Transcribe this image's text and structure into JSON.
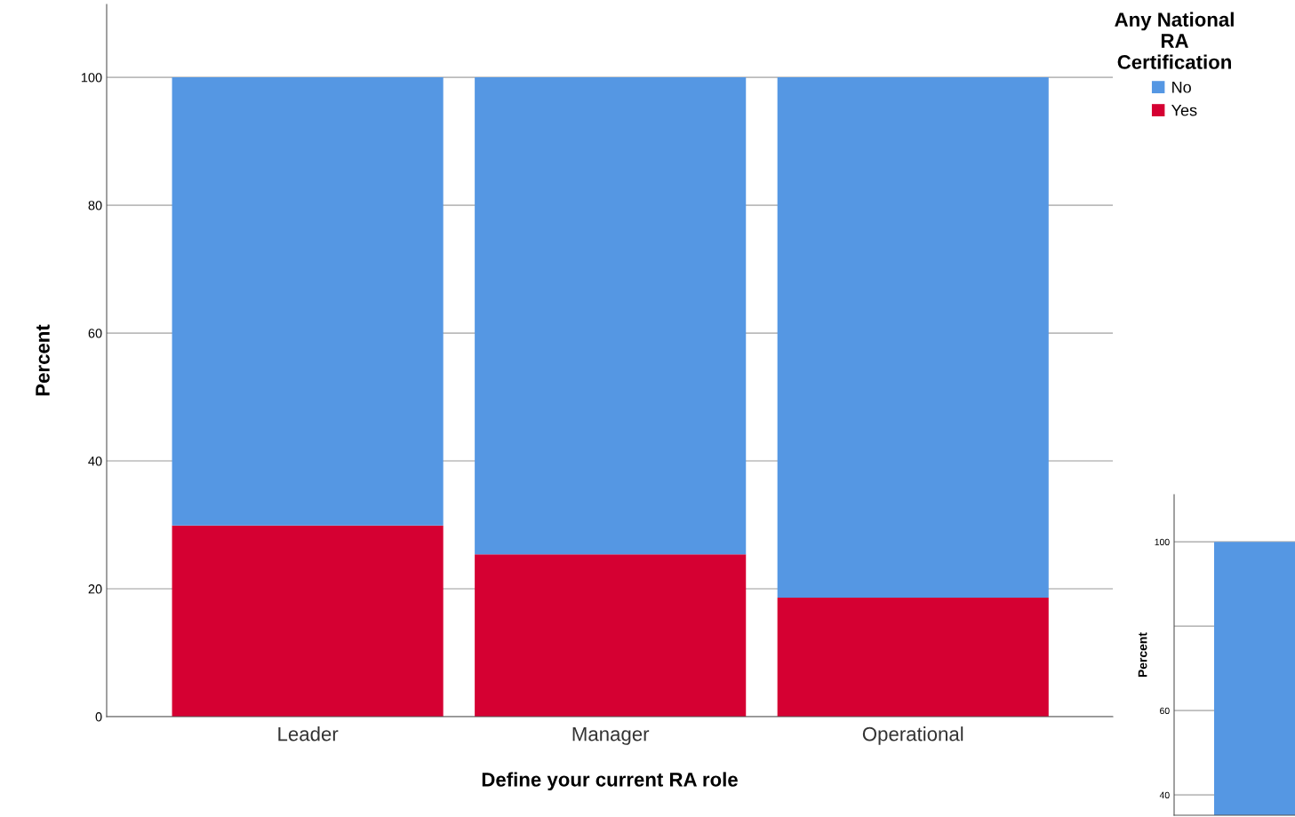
{
  "chart_data": [
    {
      "type": "bar",
      "stacked": true,
      "xlabel": "Define your current RA role",
      "ylabel": "Percent",
      "legend_title": "Any National\nRA\nCertification",
      "legend": "top right",
      "categories": [
        "Leader",
        "Manager",
        "Operational"
      ],
      "series": [
        {
          "name": "Yes",
          "color": "#d50032",
          "values": [
            29.9,
            25.4,
            18.6
          ]
        },
        {
          "name": "No",
          "color": "#5597e3",
          "values": [
            70.1,
            74.6,
            81.4
          ]
        }
      ],
      "ylim": [
        0,
        111.4
      ],
      "yticks": [
        0,
        20,
        40,
        60,
        80,
        100
      ],
      "grid": "y"
    },
    {
      "type": "bar",
      "ylabel": "Percent",
      "categories": [
        null
      ],
      "series": [
        {
          "color": "#5597e3",
          "values": [
            100
          ]
        }
      ],
      "ylim": [
        35.2,
        111.2
      ],
      "yticks": [
        40,
        60,
        {
          "value": 80,
          "label": null
        },
        100
      ],
      "grid": "y"
    }
  ]
}
